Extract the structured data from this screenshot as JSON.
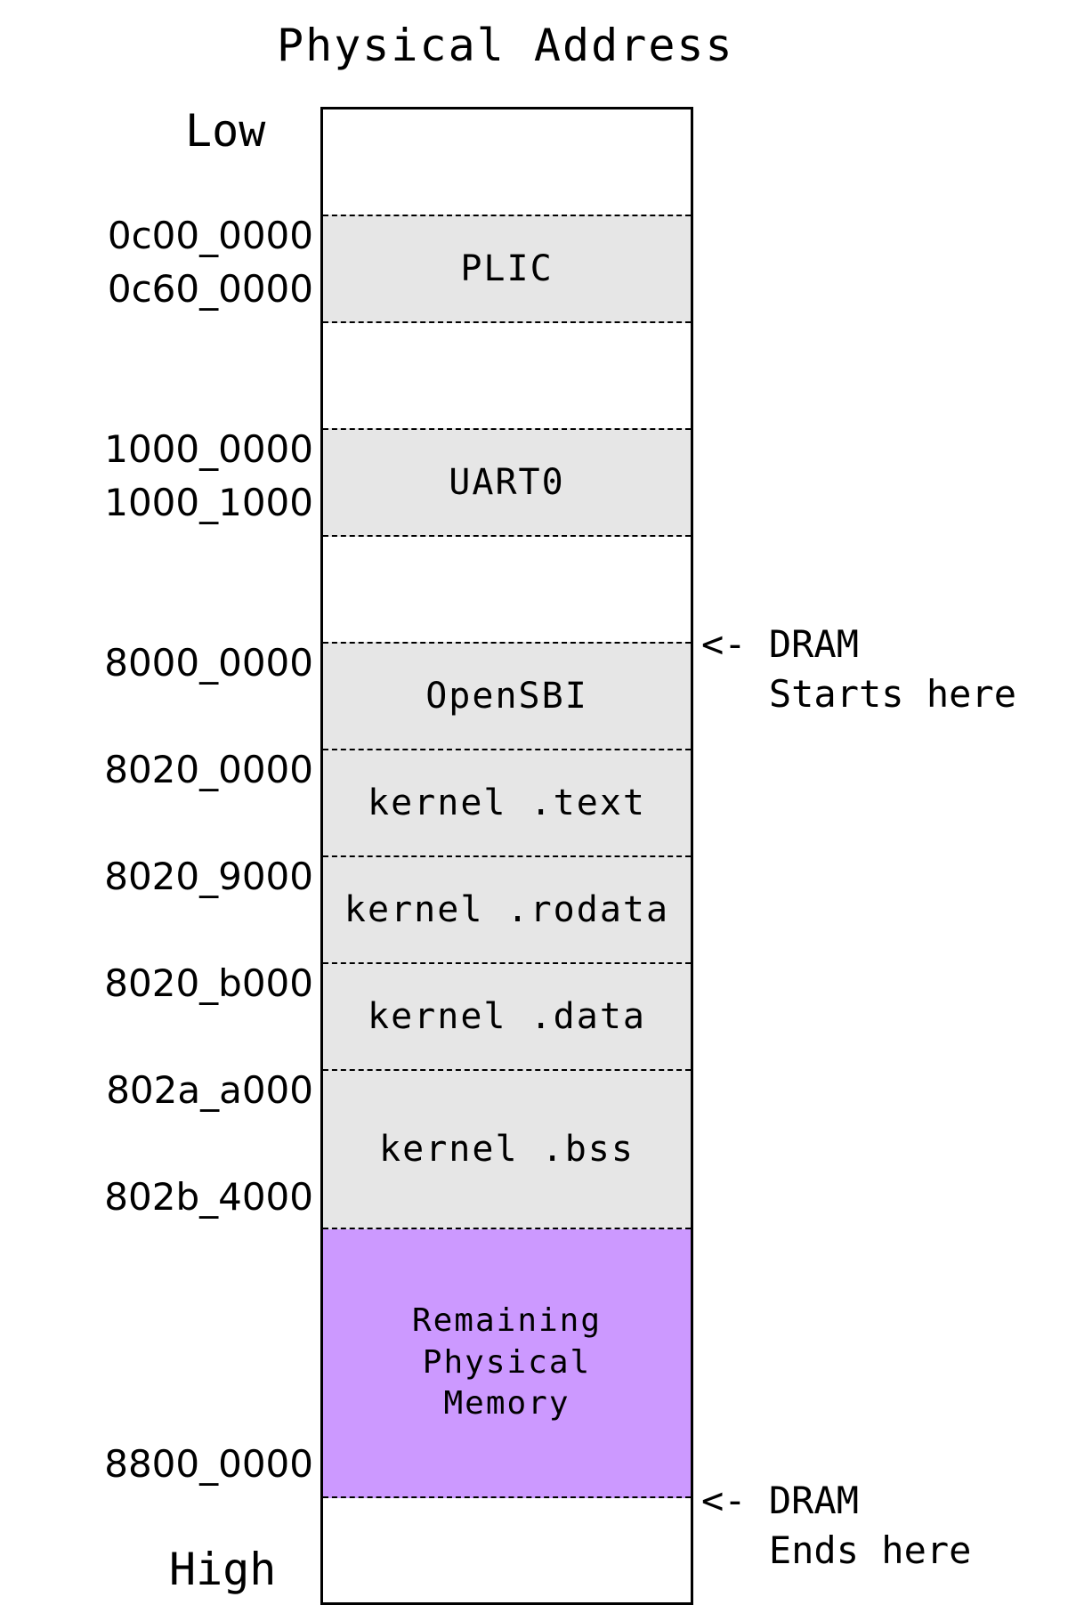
{
  "title": "Physical Address",
  "low_label": "Low",
  "high_label": "High",
  "regions": {
    "plic": "PLIC",
    "uart0": "UART0",
    "opensbi": "OpenSBI",
    "kernel_text": "kernel .text",
    "kernel_rodata": "kernel .rodata",
    "kernel_data": "kernel .data",
    "kernel_bss": "kernel .bss",
    "remaining": "Remaining\nPhysical\nMemory"
  },
  "addresses": {
    "a0c000000": "0c00_0000",
    "a0c600000": "0c60_0000",
    "a10000000": "1000_0000",
    "a10001000": "1000_1000",
    "a80000000": "8000_0000",
    "a80200000": "8020_0000",
    "a80209000": "8020_9000",
    "a8020b000": "8020_b000",
    "a802aa000": "802a_a000",
    "a802b4000": "802b_4000",
    "a88000000": "8800_0000"
  },
  "annotations": {
    "dram_start_line1": "<- DRAM",
    "dram_start_line2": "   Starts here",
    "dram_end_line1": "<- DRAM",
    "dram_end_line2": "   Ends here"
  },
  "colors": {
    "region_fill": "#e6e6e6",
    "remaining_fill": "#cc99ff"
  }
}
